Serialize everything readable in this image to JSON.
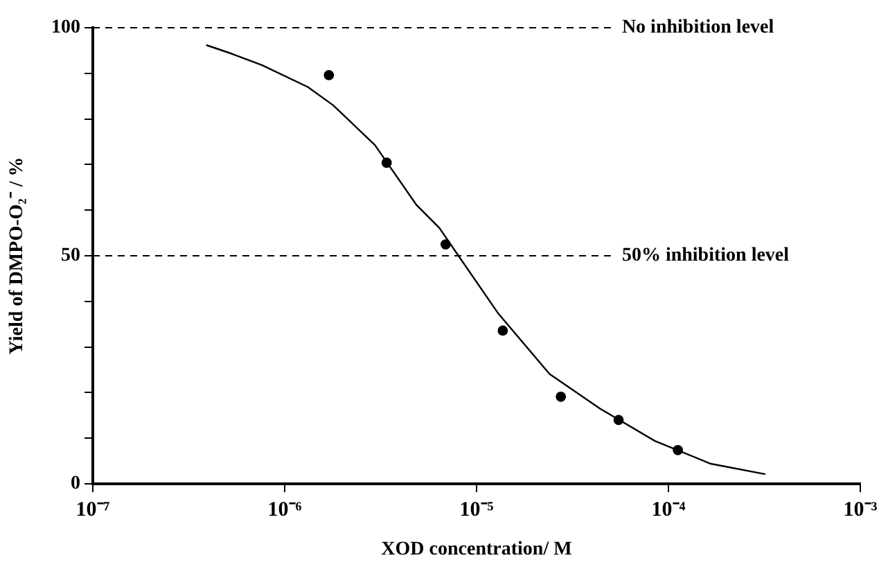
{
  "chart_data": {
    "type": "scatter",
    "xlabel": "XOD concentration/ M",
    "ylabel": "Yield of DMPO-O₂⁻ / %",
    "log": "x",
    "xlim": [
      1e-07,
      0.001
    ],
    "xticks": [
      {
        "value": 1e-07,
        "label": "10⁻⁷"
      },
      {
        "value": 1e-06,
        "label": "10⁻⁶"
      },
      {
        "value": 1e-05,
        "label": "10⁻⁵"
      },
      {
        "value": 0.0001,
        "label": "10⁻⁴"
      },
      {
        "value": 0.001,
        "label": "10⁻³"
      }
    ],
    "ylim": [
      0,
      100
    ],
    "yticks": [
      0,
      {
        "value": 10,
        "label": null
      },
      {
        "value": 20,
        "label": null
      },
      {
        "value": 30,
        "label": null
      },
      {
        "value": 40,
        "label": null
      },
      50,
      {
        "value": 60,
        "label": null
      },
      {
        "value": 70,
        "label": null
      },
      {
        "value": 80,
        "label": null
      },
      {
        "value": 90,
        "label": null
      },
      100
    ],
    "grid": false,
    "legend": false,
    "marker": "circle",
    "series": [
      {
        "color": "#000000",
        "x": [
          1.7e-06,
          3.4e-06,
          6.9e-06,
          1.37e-05,
          2.75e-05,
          5.5e-05,
          0.000112
        ],
        "values": [
          89.6,
          70.4,
          52.5,
          33.6,
          19.1,
          14,
          7.4
        ]
      },
      {
        "type": "line",
        "color": "#000000",
        "marker": "none",
        "line_style": "solid",
        "x": [
          3.9e-07,
          5.3e-07,
          7.6e-07,
          1.32e-06,
          1.79e-06,
          2.95e-06,
          4.85e-06,
          6.4e-06,
          8.2e-06,
          1.3e-05,
          2.4e-05,
          4.4e-05,
          8.5e-05,
          0.000166,
          0.00032
        ],
        "values": [
          96.2,
          94.3,
          91.8,
          87,
          83,
          74.3,
          61.2,
          56.1,
          49.5,
          37.3,
          24.1,
          16.5,
          9.4,
          4.4,
          2.1
        ]
      }
    ],
    "ref_lines": [
      {
        "axis": "y",
        "value": 100,
        "label": "No inhibition level",
        "color": "#000000",
        "line_style": "dashed"
      },
      {
        "axis": "y",
        "value": 50,
        "label": "50% inhibition level",
        "color": "#000000",
        "line_style": "dashed"
      }
    ]
  }
}
